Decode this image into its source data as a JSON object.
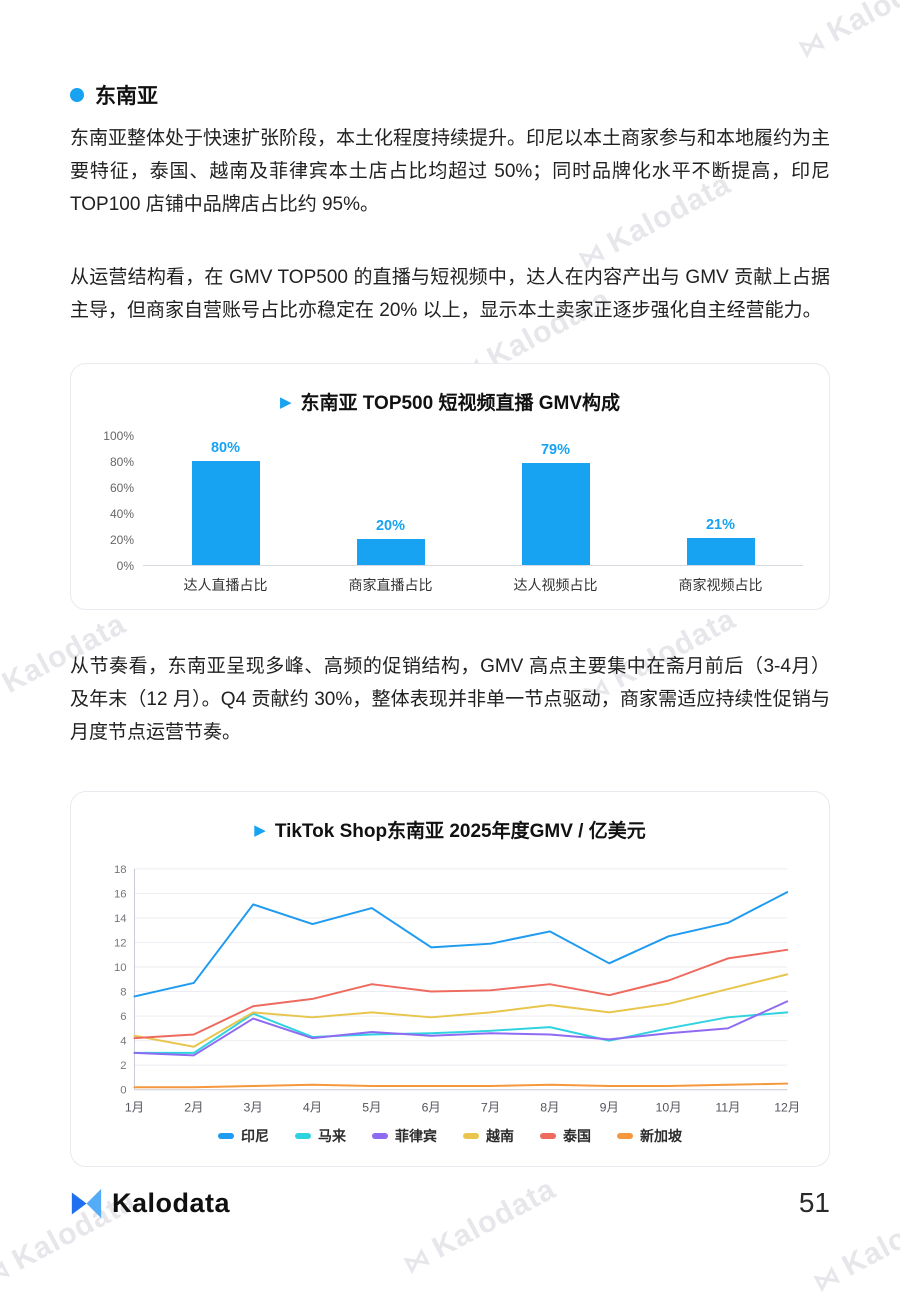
{
  "icons": {
    "play": "▶",
    "watermark_mark": "⋈"
  },
  "watermark": {
    "text": "Kalodata"
  },
  "section": {
    "heading": "东南亚"
  },
  "paragraphs": {
    "p1": "东南亚整体处于快速扩张阶段，本土化程度持续提升。印尼以本土商家参与和本地履约为主要特征，泰国、越南及菲律宾本土店占比均超过 50%；同时品牌化水平不断提高，印尼 TOP100 店铺中品牌店占比约 95%。",
    "p2": "从运营结构看，在 GMV TOP500 的直播与短视频中，达人在内容产出与 GMV 贡献上占据主导，但商家自营账号占比亦稳定在 20% 以上，显示本土卖家正逐步强化自主经营能力。",
    "p3": "从节奏看，东南亚呈现多峰、高频的促销结构，GMV 高点主要集中在斋月前后（3-4月）及年末（12 月）。Q4 贡献约 30%，整体表现并非单一节点驱动，商家需适应持续性促销与月度节点运营节奏。"
  },
  "chart_data": [
    {
      "type": "bar",
      "title": "东南亚 TOP500 短视频直播 GMV构成",
      "categories": [
        "达人直播占比",
        "商家直播占比",
        "达人视频占比",
        "商家视频占比"
      ],
      "values": [
        80,
        20,
        79,
        21
      ],
      "value_labels": [
        "80%",
        "20%",
        "79%",
        "21%"
      ],
      "yticks": [
        "0%",
        "20%",
        "40%",
        "60%",
        "80%",
        "100%"
      ],
      "ylim": [
        0,
        100
      ],
      "bar_color": "#18a2f2",
      "grid": false,
      "legend_position": "none"
    },
    {
      "type": "line",
      "title": "TikTok Shop东南亚 2025年度GMV / 亿美元",
      "x": [
        "1月",
        "2月",
        "3月",
        "4月",
        "5月",
        "6月",
        "7月",
        "8月",
        "9月",
        "10月",
        "11月",
        "12月"
      ],
      "ylabel": "",
      "ylim": [
        0,
        18
      ],
      "ytick_step": 2,
      "grid": true,
      "legend_position": "bottom",
      "series": [
        {
          "name": "印尼",
          "color": "#1e9bf0",
          "values": [
            7.6,
            8.7,
            15.1,
            13.5,
            14.8,
            11.6,
            11.9,
            12.9,
            10.3,
            12.5,
            13.6,
            16.1
          ]
        },
        {
          "name": "马来",
          "color": "#2fd3e0",
          "values": [
            3.0,
            3.0,
            6.2,
            4.3,
            4.5,
            4.6,
            4.8,
            5.1,
            4.0,
            5.0,
            5.9,
            6.3
          ]
        },
        {
          "name": "菲律宾",
          "color": "#8f6bf2",
          "values": [
            3.0,
            2.8,
            5.8,
            4.2,
            4.7,
            4.4,
            4.6,
            4.5,
            4.1,
            4.6,
            5.0,
            7.2
          ]
        },
        {
          "name": "越南",
          "color": "#e8c54d",
          "values": [
            4.4,
            3.5,
            6.3,
            5.9,
            6.3,
            5.9,
            6.3,
            6.9,
            6.3,
            7.0,
            8.2,
            9.4
          ]
        },
        {
          "name": "泰国",
          "color": "#ee6a5f",
          "values": [
            4.2,
            4.5,
            6.8,
            7.4,
            8.6,
            8.0,
            8.1,
            8.6,
            7.7,
            8.9,
            10.7,
            11.4
          ]
        },
        {
          "name": "新加坡",
          "color": "#f5973c",
          "values": [
            0.2,
            0.2,
            0.3,
            0.4,
            0.3,
            0.3,
            0.3,
            0.4,
            0.3,
            0.3,
            0.4,
            0.5
          ]
        }
      ]
    }
  ],
  "footer": {
    "brand": "Kalodata",
    "page_number": "51"
  }
}
